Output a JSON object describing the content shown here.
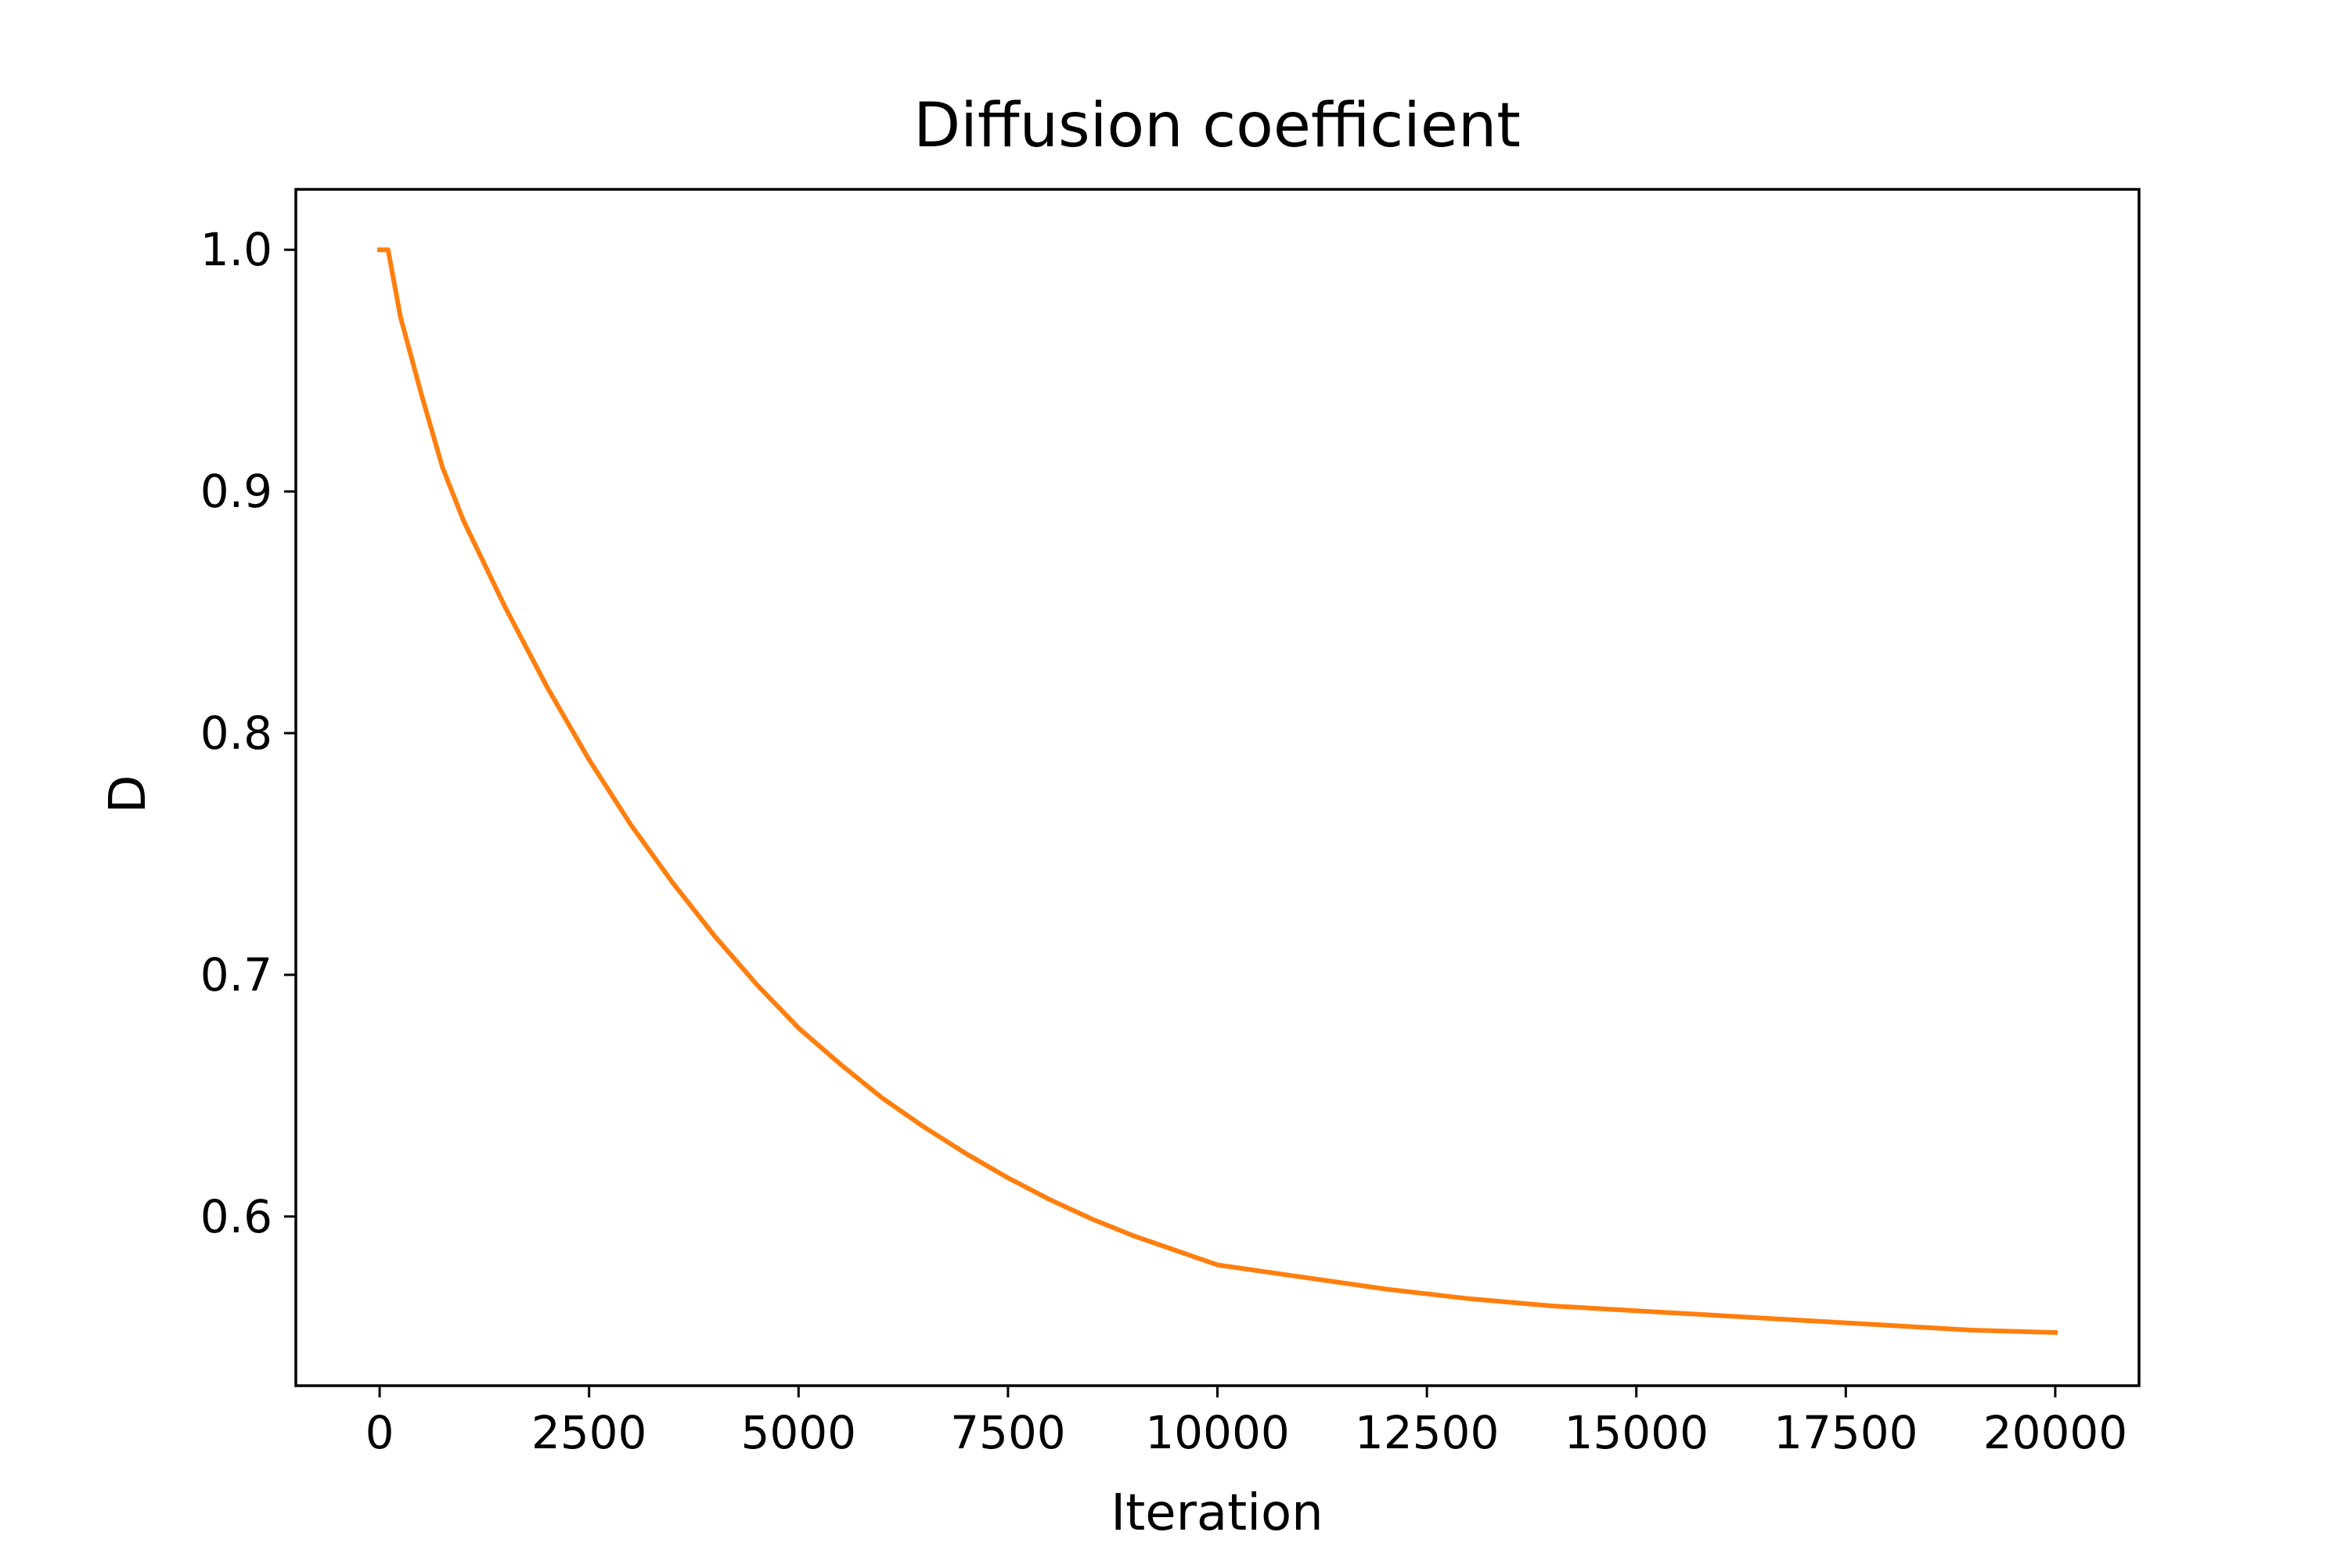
{
  "chart_data": {
    "type": "line",
    "title": "Diffusion coefficient",
    "xlabel": "Iteration",
    "ylabel": "D",
    "xlim": [
      -1000,
      21000
    ],
    "ylim": [
      0.53,
      1.025
    ],
    "xticks": [
      0,
      2500,
      5000,
      7500,
      10000,
      12500,
      15000,
      17500,
      20000
    ],
    "xtick_labels": [
      "0",
      "2500",
      "5000",
      "7500",
      "10000",
      "12500",
      "15000",
      "17500",
      "20000"
    ],
    "yticks": [
      0.6,
      0.7,
      0.8,
      0.9,
      1.0
    ],
    "ytick_labels": [
      "0.6",
      "0.7",
      "0.8",
      "0.9",
      "1.0"
    ],
    "grid": false,
    "legend": "none",
    "series": [
      {
        "color": "#ff7f0e",
        "x": [
          0,
          100,
          250,
          500,
          750,
          1000,
          1500,
          2000,
          2500,
          3000,
          3500,
          4000,
          4500,
          5000,
          5500,
          6000,
          6500,
          7000,
          7500,
          8000,
          8500,
          9000,
          9500,
          10000,
          11000,
          12000,
          13000,
          14000,
          15000,
          16000,
          17000,
          18000,
          19000,
          20000
        ],
        "y": [
          1.0,
          1.0,
          0.972,
          0.94,
          0.91,
          0.888,
          0.852,
          0.819,
          0.789,
          0.762,
          0.738,
          0.716,
          0.696,
          0.678,
          0.663,
          0.649,
          0.637,
          0.626,
          0.616,
          0.607,
          0.599,
          0.592,
          0.586,
          0.58,
          0.575,
          0.57,
          0.566,
          0.563,
          0.561,
          0.559,
          0.557,
          0.555,
          0.553,
          0.552
        ]
      }
    ]
  }
}
